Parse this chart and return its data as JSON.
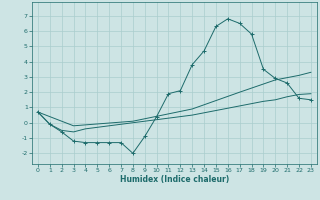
{
  "xlabel": "Humidex (Indice chaleur)",
  "background_color": "#cde4e4",
  "grid_color": "#aacece",
  "line_color": "#1d6b6b",
  "xlim": [
    -0.5,
    23.5
  ],
  "ylim": [
    -2.7,
    7.9
  ],
  "yticks": [
    -2,
    -1,
    0,
    1,
    2,
    3,
    4,
    5,
    6,
    7
  ],
  "xticks": [
    0,
    1,
    2,
    3,
    4,
    5,
    6,
    7,
    8,
    9,
    10,
    11,
    12,
    13,
    14,
    15,
    16,
    17,
    18,
    19,
    20,
    21,
    22,
    23
  ],
  "series": [
    {
      "x": [
        0,
        1,
        2,
        3,
        4,
        5,
        6,
        7,
        8,
        9,
        10,
        11,
        12,
        13,
        14,
        15,
        16,
        17,
        18,
        19,
        20,
        21,
        22,
        23
      ],
      "y": [
        0.7,
        -0.1,
        -0.6,
        -1.2,
        -1.3,
        -1.3,
        -1.3,
        -1.3,
        -2.0,
        -0.9,
        0.4,
        1.9,
        2.1,
        3.8,
        4.7,
        6.3,
        6.8,
        6.5,
        5.8,
        3.5,
        2.9,
        2.6,
        1.6,
        1.5
      ],
      "marker": true
    },
    {
      "x": [
        0,
        1,
        2,
        3,
        4,
        5,
        8,
        10,
        13,
        15,
        17,
        19,
        20,
        21,
        22,
        23
      ],
      "y": [
        0.7,
        -0.1,
        -0.5,
        -0.6,
        -0.4,
        -0.3,
        0.0,
        0.2,
        0.5,
        0.8,
        1.1,
        1.4,
        1.5,
        1.7,
        1.85,
        1.9
      ],
      "marker": false
    },
    {
      "x": [
        0,
        3,
        8,
        13,
        17,
        20,
        22,
        23
      ],
      "y": [
        0.7,
        -0.2,
        0.1,
        0.9,
        2.0,
        2.8,
        3.1,
        3.3
      ],
      "marker": false
    }
  ]
}
